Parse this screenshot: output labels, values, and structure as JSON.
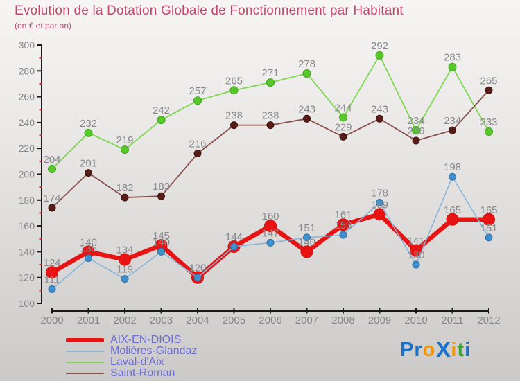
{
  "header": {
    "title": "Evolution de la Dotation Globale de Fonctionnement par Habitant",
    "subtitle": "(en € et par an)"
  },
  "colors": {
    "title_accent": "#c8456b",
    "legend_text": "#6b6bd6",
    "axis": "#1a1a1a",
    "minor_tick": "#b5332a",
    "tick_label": "#85878a",
    "point_label": "#87898c"
  },
  "chart_data": {
    "type": "line",
    "x": [
      2000,
      2001,
      2002,
      2003,
      2004,
      2005,
      2006,
      2007,
      2008,
      2009,
      2010,
      2011,
      2012
    ],
    "series": [
      {
        "name": "AIX-EN-DIOIS",
        "values": [
          124,
          140,
          134,
          145,
          120,
          144,
          160,
          140,
          161,
          169,
          141,
          165,
          165
        ],
        "line_color": "#e81313",
        "line_width": 6.5,
        "marker_fill": "#e81313",
        "marker_stroke": "#d40f0f",
        "marker_radius": 8.5,
        "z": 3
      },
      {
        "name": "Molières-Glandaz",
        "values": [
          111,
          135,
          119,
          140,
          120,
          144,
          147,
          151,
          153,
          178,
          130,
          198,
          151
        ],
        "line_color": "#8ab4d8",
        "line_width": 1.6,
        "marker_fill": "#3f8fcc",
        "marker_stroke": "#2f70a6",
        "marker_radius": 5,
        "z": 4
      },
      {
        "name": "Laval-d'Aix",
        "values": [
          204,
          232,
          219,
          242,
          257,
          265,
          271,
          278,
          244,
          292,
          234,
          283,
          233
        ],
        "line_color": "#7ed74f",
        "line_width": 1.8,
        "marker_fill": "#58c82b",
        "marker_stroke": "#3da51e",
        "marker_radius": 5.5,
        "z": 1
      },
      {
        "name": "Saint-Roman",
        "values": [
          174,
          201,
          182,
          183,
          216,
          238,
          238,
          243,
          229,
          243,
          226,
          234,
          265
        ],
        "line_color": "#8a514b",
        "line_width": 1.8,
        "marker_fill": "#571e18",
        "marker_stroke": "#3f130f",
        "marker_radius": 5,
        "z": 2
      }
    ],
    "ylim": [
      100,
      300
    ],
    "y_major_step": 20,
    "y_minor_step": 10,
    "grid": false,
    "data_labels": true,
    "legend_position": "bottom-left"
  },
  "logo": {
    "text": "ProXiti",
    "letters": [
      {
        "ch": "P",
        "color": "#1d70c8",
        "big": false
      },
      {
        "ch": "r",
        "color": "#1d70c8",
        "big": false
      },
      {
        "ch": "o",
        "color": "#f29500",
        "big": false
      },
      {
        "ch": "X",
        "color": "#1d70c8",
        "big": true
      },
      {
        "ch": "i",
        "color": "#f29500",
        "big": false
      },
      {
        "ch": "t",
        "color": "#35a42c",
        "big": false
      },
      {
        "ch": "i",
        "color": "#1d70c8",
        "big": false
      }
    ]
  }
}
